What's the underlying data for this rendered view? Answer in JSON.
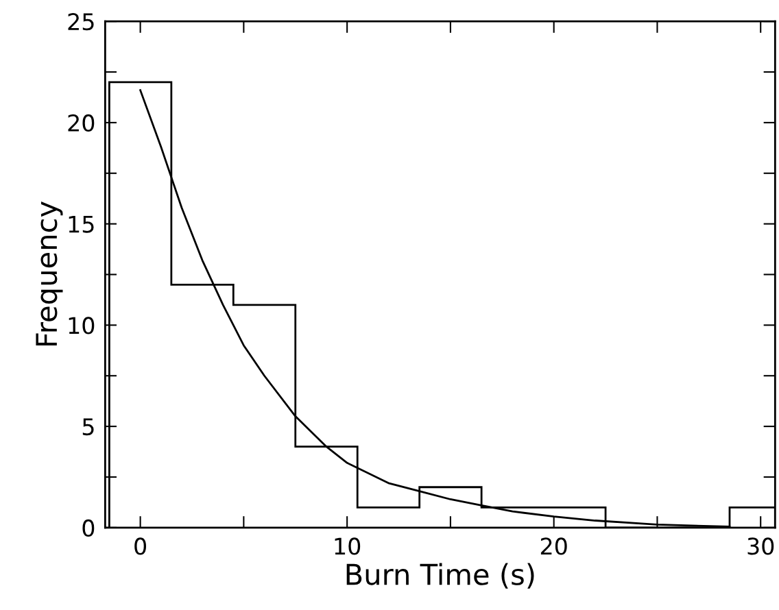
{
  "chart_data": {
    "type": "histogram",
    "xlabel": "Burn Time (s)",
    "ylabel": "Frequency",
    "bins": [
      -1.5,
      1.5,
      4.5,
      7.5,
      10.5,
      13.5,
      16.5,
      19.5,
      22.5,
      25.5,
      28.5,
      30.7
    ],
    "values": [
      22,
      12,
      11,
      4,
      1,
      2,
      1,
      1,
      0,
      0,
      1
    ],
    "color": "#000000",
    "series": [
      {
        "type": "line",
        "color": "#000000",
        "x": [
          0,
          1,
          2,
          3,
          4,
          5,
          6,
          7.5,
          9,
          10,
          12,
          13.5,
          15,
          16.5,
          18,
          20,
          22,
          25,
          28.5
        ],
        "values": [
          21.6,
          18.8,
          15.8,
          13.2,
          11.0,
          9.0,
          7.5,
          5.5,
          4.0,
          3.2,
          2.2,
          1.8,
          1.4,
          1.1,
          0.8,
          0.55,
          0.35,
          0.15,
          0.05
        ]
      }
    ],
    "xlim": [
      -1.7,
      30.7
    ],
    "ylim": [
      0,
      25
    ],
    "xticks": [
      0,
      10,
      20,
      30
    ],
    "yticks": [
      0,
      5,
      10,
      15,
      20,
      25
    ],
    "grid": false,
    "legend": false
  }
}
